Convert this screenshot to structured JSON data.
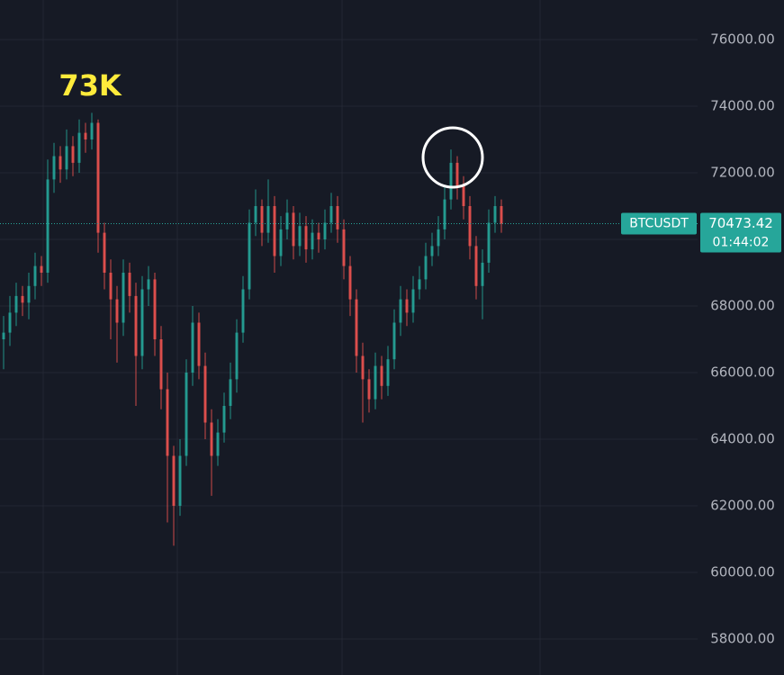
{
  "chart_data": {
    "type": "candlestick",
    "symbol": "BTCUSDT",
    "countdown": "01:44:02",
    "annotation": "73K",
    "up_color": "#26a69a",
    "down_color": "#ef5350",
    "ylim": [
      56919,
      77189
    ],
    "yticks": [
      {
        "value": 58000,
        "label": "58000.00"
      },
      {
        "value": 60000,
        "label": "60000.00"
      },
      {
        "value": 62000,
        "label": "62000.00"
      },
      {
        "value": 64000,
        "label": "64000.00"
      },
      {
        "value": 66000,
        "label": "66000.00"
      },
      {
        "value": 68000,
        "label": "68000.00"
      },
      {
        "value": 70000,
        "label": "70000.00"
      },
      {
        "value": 72000,
        "label": "72000.00"
      },
      {
        "value": 74000,
        "label": "74000.00"
      },
      {
        "value": 76000,
        "label": "76000.00"
      }
    ],
    "grid": true,
    "open": [
      67000,
      67200,
      67800,
      68300,
      68100,
      68600,
      69200,
      69000,
      71800,
      72500,
      72100,
      72800,
      72300,
      73200,
      73000,
      73500,
      70200,
      69000,
      68200,
      67500,
      69000,
      68300,
      66500,
      68500,
      68800,
      67000,
      65500,
      63500,
      62000,
      63500,
      66000,
      67500,
      66200,
      64500,
      63500,
      64200,
      65000,
      65800,
      67200,
      68500,
      70500,
      71000,
      70200,
      71000,
      69500,
      70300,
      70800,
      69800,
      70400,
      69700,
      70200,
      70000,
      70500,
      71000,
      70300,
      69200,
      68200,
      66500,
      65800,
      65200,
      66200,
      65600,
      66400,
      67500,
      68200,
      67800,
      68500,
      68800,
      69500,
      69800,
      70300,
      71200,
      72300,
      71600,
      71000,
      69800,
      68600,
      69300,
      70500,
      71000
    ],
    "high": [
      67700,
      68300,
      68700,
      68600,
      69000,
      69600,
      69500,
      72400,
      72900,
      72800,
      73300,
      73100,
      73600,
      73500,
      73800,
      73600,
      70500,
      69400,
      68600,
      69400,
      69300,
      68700,
      68900,
      69200,
      69000,
      67400,
      66000,
      63800,
      64000,
      66400,
      68000,
      67800,
      66600,
      64900,
      64600,
      65400,
      66300,
      67600,
      68900,
      70900,
      71500,
      71200,
      71800,
      71300,
      70700,
      71200,
      71000,
      70800,
      70700,
      70600,
      70500,
      70900,
      71400,
      71300,
      70600,
      69500,
      68500,
      66900,
      66100,
      66600,
      66500,
      66800,
      67900,
      68600,
      68500,
      68900,
      69200,
      69900,
      70200,
      70700,
      71600,
      72700,
      72500,
      71900,
      71300,
      70100,
      69700,
      70900,
      71300,
      71200
    ],
    "low": [
      66100,
      66800,
      67400,
      67700,
      67600,
      68200,
      68600,
      68700,
      71400,
      71700,
      71800,
      71900,
      72000,
      72600,
      72700,
      69600,
      68500,
      67000,
      66300,
      67100,
      67800,
      65000,
      66100,
      68000,
      66500,
      64900,
      61500,
      60800,
      61700,
      63200,
      65600,
      65800,
      64000,
      62300,
      63200,
      63900,
      64600,
      65400,
      66900,
      68200,
      70100,
      69800,
      69900,
      69000,
      69200,
      70000,
      69400,
      69500,
      69300,
      69400,
      69600,
      69700,
      70200,
      69900,
      68800,
      67700,
      66000,
      64500,
      64800,
      64900,
      65200,
      65300,
      66100,
      67100,
      67400,
      67500,
      68200,
      68500,
      69200,
      69500,
      70000,
      70900,
      71200,
      70600,
      69400,
      68200,
      67600,
      69000,
      70200,
      70200
    ],
    "close": [
      67200,
      67800,
      68300,
      68100,
      68600,
      69200,
      69000,
      71800,
      72500,
      72100,
      72800,
      72300,
      73200,
      73000,
      73500,
      70200,
      69000,
      68200,
      67500,
      69000,
      68300,
      66500,
      68500,
      68800,
      67000,
      65500,
      63500,
      62000,
      63500,
      66000,
      67500,
      66200,
      64500,
      63500,
      64200,
      65000,
      65800,
      67200,
      68500,
      70500,
      71000,
      70200,
      71000,
      69500,
      70300,
      70800,
      69800,
      70400,
      69700,
      70200,
      70000,
      70500,
      71000,
      70300,
      69200,
      68200,
      66500,
      65800,
      65200,
      66200,
      65600,
      66400,
      67500,
      68200,
      67800,
      68500,
      68800,
      69500,
      69800,
      70300,
      71200,
      72300,
      71600,
      71000,
      69800,
      68600,
      69300,
      70500,
      71000,
      70473.42
    ]
  }
}
